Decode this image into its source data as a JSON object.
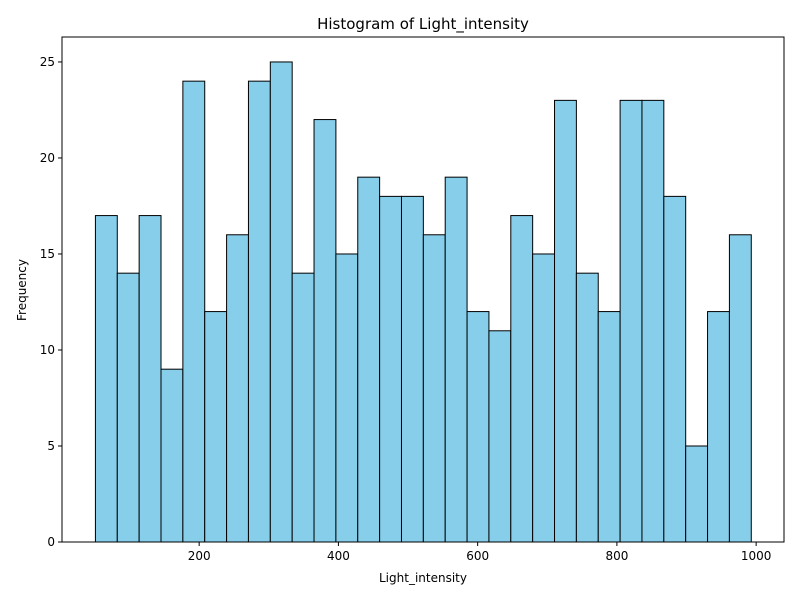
{
  "chart_data": {
    "type": "bar",
    "title": "Histogram of Light_intensity",
    "xlabel": "Light_intensity",
    "ylabel": "Frequency",
    "xlim": [
      3,
      1040
    ],
    "ylim": [
      0,
      26.3
    ],
    "x_ticks": [
      200,
      400,
      600,
      800,
      1000
    ],
    "y_ticks": [
      0,
      5,
      10,
      15,
      20,
      25
    ],
    "bin_start": 51,
    "bin_width": 31.4,
    "values": [
      17,
      14,
      17,
      9,
      24,
      12,
      16,
      24,
      25,
      14,
      22,
      15,
      19,
      18,
      18,
      16,
      19,
      12,
      11,
      17,
      15,
      23,
      14,
      12,
      23,
      23,
      18,
      5,
      12,
      16
    ],
    "bar_color": "#87ceeb",
    "edge_color": "#000000",
    "grid": false,
    "legend": "none"
  }
}
